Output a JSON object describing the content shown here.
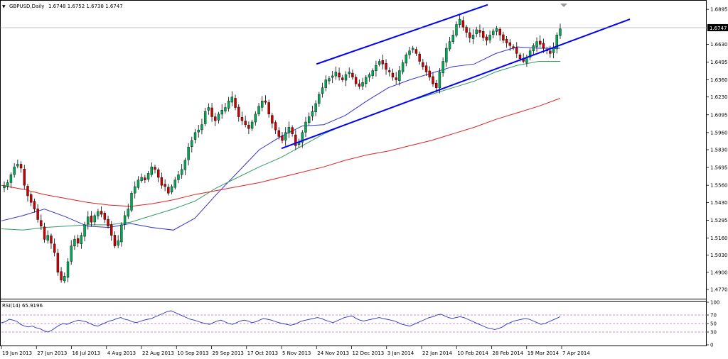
{
  "window": {
    "symbol_label": "GBPUSD,Daily",
    "ohlc_label": "1.6748 1.6752 1.6738 1.6747",
    "menu_glyph": "▼"
  },
  "colors": {
    "background": "#ffffff",
    "grid": "#000000",
    "bull_candle": "#00aa55",
    "bear_candle": "#cc0000",
    "channel": "#0000ff",
    "ma_fast": "#3333cc",
    "ma_mid": "#339966",
    "ma_slow": "#dd2222",
    "rsi_line": "#2233cc",
    "rsi_levels": "#cc66cc"
  },
  "chart_data": [
    {
      "type": "candlestick",
      "symbol": "GBPUSD",
      "timeframe": "Daily",
      "title": "GBPUSD,Daily",
      "last_ohlc": {
        "open": 1.6748,
        "high": 1.6752,
        "low": 1.6738,
        "close": 1.6747
      },
      "current_price_label": "1.6747",
      "ylim": [
        1.4705,
        1.6955
      ],
      "y_ticks": [
        "1.6895",
        "1.6630",
        "1.6495",
        "1.6360",
        "1.6230",
        "1.6095",
        "1.5960",
        "1.5830",
        "1.5695",
        "1.5560",
        "1.5430",
        "1.5295",
        "1.5160",
        "1.5030",
        "1.4900",
        "1.4770"
      ],
      "x_tick_labels": [
        "19 Jun 2013",
        "27 Jun 2013",
        "16 Jul 2013",
        "4 Aug 2013",
        "22 Aug 2013",
        "10 Sep 2013",
        "29 Sep 2013",
        "17 Oct 2013",
        "5 Nov 2013",
        "24 Nov 2013",
        "12 Dec 2013",
        "3 Jan 2014",
        "22 Jan 2014",
        "10 Feb 2014",
        "28 Feb 2014",
        "19 Mar 2014",
        "7 Apr 2014"
      ],
      "closes_approx": [
        1.556,
        1.558,
        1.564,
        1.57,
        1.572,
        1.569,
        1.556,
        1.548,
        1.543,
        1.538,
        1.53,
        1.525,
        1.515,
        1.518,
        1.512,
        1.505,
        1.49,
        1.484,
        1.487,
        1.498,
        1.51,
        1.515,
        1.512,
        1.518,
        1.526,
        1.532,
        1.528,
        1.533,
        1.536,
        1.534,
        1.53,
        1.525,
        1.518,
        1.51,
        1.514,
        1.526,
        1.533,
        1.538,
        1.55,
        1.555,
        1.56,
        1.562,
        1.56,
        1.565,
        1.57,
        1.568,
        1.562,
        1.556,
        1.555,
        1.55,
        1.555,
        1.56,
        1.564,
        1.568,
        1.575,
        1.585,
        1.59,
        1.596,
        1.598,
        1.602,
        1.612,
        1.615,
        1.608,
        1.605,
        1.61,
        1.613,
        1.615,
        1.62,
        1.623,
        1.615,
        1.608,
        1.605,
        1.602,
        1.599,
        1.604,
        1.61,
        1.616,
        1.62,
        1.619,
        1.61,
        1.603,
        1.598,
        1.593,
        1.59,
        1.596,
        1.6,
        1.595,
        1.586,
        1.589,
        1.596,
        1.604,
        1.608,
        1.612,
        1.618,
        1.625,
        1.63,
        1.636,
        1.637,
        1.639,
        1.642,
        1.638,
        1.636,
        1.64,
        1.642,
        1.638,
        1.633,
        1.631,
        1.634,
        1.638,
        1.64,
        1.643,
        1.647,
        1.65,
        1.648,
        1.644,
        1.642,
        1.638,
        1.636,
        1.643,
        1.649,
        1.655,
        1.658,
        1.66,
        1.656,
        1.65,
        1.646,
        1.642,
        1.638,
        1.633,
        1.63,
        1.642,
        1.65,
        1.66,
        1.665,
        1.67,
        1.678,
        1.682,
        1.676,
        1.672,
        1.668,
        1.67,
        1.674,
        1.672,
        1.668,
        1.666,
        1.67,
        1.673,
        1.675,
        1.67,
        1.666,
        1.664,
        1.662,
        1.66,
        1.656,
        1.652,
        1.65,
        1.653,
        1.658,
        1.662,
        1.665,
        1.663,
        1.66,
        1.658,
        1.656,
        1.66,
        1.67,
        1.6747
      ],
      "moving_averages": [
        {
          "color": "#3333cc",
          "approx": [
            1.529,
            1.533,
            1.538,
            1.532,
            1.525,
            1.524,
            1.527,
            1.524,
            1.522,
            1.531,
            1.549,
            1.566,
            1.583,
            1.593,
            1.601,
            1.602,
            1.609,
            1.62,
            1.63,
            1.636,
            1.641,
            1.646,
            1.648,
            1.656,
            1.661,
            1.66,
            1.66
          ]
        },
        {
          "color": "#339966",
          "approx": [
            1.523,
            1.522,
            1.524,
            1.525,
            1.526,
            1.526,
            1.528,
            1.533,
            1.538,
            1.544,
            1.554,
            1.562,
            1.57,
            1.577,
            1.586,
            1.595,
            1.602,
            1.608,
            1.614,
            1.62,
            1.625,
            1.63,
            1.635,
            1.642,
            1.647,
            1.65,
            1.65
          ]
        },
        {
          "color": "#dd2222",
          "approx": [
            1.556,
            1.553,
            1.549,
            1.546,
            1.543,
            1.541,
            1.54,
            1.542,
            1.545,
            1.549,
            1.552,
            1.555,
            1.558,
            1.562,
            1.566,
            1.57,
            1.575,
            1.579,
            1.582,
            1.586,
            1.59,
            1.595,
            1.6,
            1.606,
            1.611,
            1.616,
            1.622
          ]
        }
      ],
      "trendlines": [
        {
          "name": "channel upper",
          "from": {
            "date": "24 Nov 2013",
            "price": 1.648
          },
          "to": {
            "date": "Feb 2014",
            "price": 1.693
          }
        },
        {
          "name": "channel lower",
          "from": {
            "date": "5 Nov 2013",
            "price": 1.584
          },
          "to": {
            "date": "Apr 2014",
            "price": 1.682
          }
        }
      ]
    },
    {
      "type": "line",
      "title": "RSI(14) 65.9196",
      "indicator": "RSI",
      "period": 14,
      "last_value": 65.9196,
      "ylim": [
        0,
        100
      ],
      "y_ticks": [
        "100",
        "70",
        "50",
        "30",
        "0"
      ],
      "levels": [
        70,
        50,
        30
      ],
      "values_approx": [
        52,
        54,
        60,
        58,
        55,
        48,
        44,
        42,
        44,
        40,
        38,
        33,
        30,
        34,
        40,
        46,
        50,
        48,
        52,
        55,
        58,
        56,
        54,
        50,
        46,
        44,
        48,
        52,
        56,
        58,
        62,
        64,
        60,
        58,
        54,
        52,
        55,
        58,
        60,
        62,
        66,
        70,
        74,
        78,
        80,
        76,
        72,
        68,
        64,
        60,
        58,
        55,
        52,
        50,
        48,
        52,
        56,
        58,
        54,
        50,
        48,
        52,
        56,
        58,
        56,
        52,
        54,
        58,
        62,
        60,
        58,
        55,
        52,
        50,
        48,
        46,
        48,
        52,
        56,
        58,
        60,
        62,
        64,
        62,
        58,
        55,
        52,
        56,
        60,
        64,
        66,
        68,
        62,
        58,
        56,
        58,
        60,
        62,
        64,
        62,
        60,
        58,
        56,
        52,
        48,
        46,
        44,
        48,
        52,
        56,
        60,
        64,
        66,
        70,
        72,
        68,
        64,
        62,
        64,
        66,
        64,
        60,
        56,
        52,
        48,
        44,
        40,
        38,
        36,
        38,
        42,
        48,
        52,
        56,
        58,
        60,
        62,
        60,
        56,
        52,
        48,
        50,
        54,
        58,
        62,
        66
      ]
    }
  ]
}
